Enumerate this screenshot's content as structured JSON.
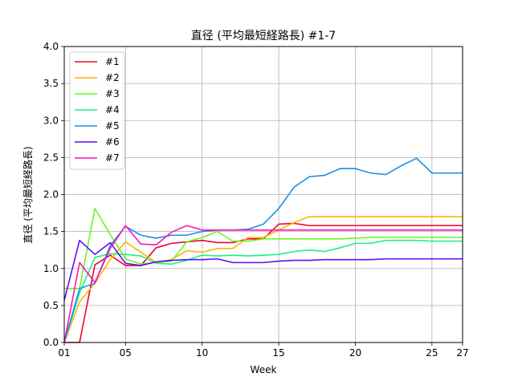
{
  "chart_data": {
    "type": "line",
    "title": "直径 (平均最短経路長)  #1-7",
    "xlabel": "Week",
    "ylabel": "直径 (平均最短経路長)",
    "xlim": [
      1,
      27
    ],
    "ylim": [
      0,
      4.0
    ],
    "x_ticks": [
      1,
      5,
      10,
      15,
      20,
      25,
      27
    ],
    "x_tick_labels": [
      "01",
      "05",
      "10",
      "15",
      "20",
      "25",
      "27"
    ],
    "y_ticks": [
      0,
      0.5,
      1.0,
      1.5,
      2.0,
      2.5,
      3.0,
      3.5,
      4.0
    ],
    "y_tick_labels": [
      "0.0",
      "0.5",
      "1.0",
      "1.5",
      "2.0",
      "2.5",
      "3.0",
      "3.5",
      "4.0"
    ],
    "grid": true,
    "legend_position": "top-left",
    "x": [
      1,
      2,
      3,
      4,
      5,
      6,
      7,
      8,
      9,
      10,
      11,
      12,
      13,
      14,
      15,
      16,
      17,
      18,
      19,
      20,
      21,
      22,
      23,
      24,
      25,
      26,
      27
    ],
    "series": [
      {
        "name": "#1",
        "color": "#f0002e",
        "values": [
          0.0,
          0.0,
          1.05,
          1.18,
          1.04,
          1.04,
          1.28,
          1.34,
          1.36,
          1.38,
          1.35,
          1.35,
          1.4,
          1.4,
          1.6,
          1.61,
          1.58,
          1.58,
          1.58,
          1.58,
          1.58,
          1.58,
          1.58,
          1.58,
          1.58,
          1.58,
          1.58
        ]
      },
      {
        "name": "#2",
        "color": "#ffb400",
        "values": [
          0.0,
          0.55,
          0.8,
          1.12,
          1.36,
          1.22,
          1.08,
          1.12,
          1.24,
          1.22,
          1.27,
          1.27,
          1.42,
          1.42,
          1.52,
          1.62,
          1.7,
          1.7,
          1.7,
          1.7,
          1.7,
          1.7,
          1.7,
          1.7,
          1.7,
          1.7,
          1.7
        ]
      },
      {
        "name": "#3",
        "color": "#6cf51e",
        "values": [
          0.73,
          0.73,
          1.81,
          1.46,
          1.13,
          1.06,
          1.08,
          1.1,
          1.36,
          1.42,
          1.5,
          1.37,
          1.37,
          1.4,
          1.4,
          1.4,
          1.4,
          1.4,
          1.4,
          1.41,
          1.42,
          1.42,
          1.42,
          1.42,
          1.42,
          1.42,
          1.42
        ]
      },
      {
        "name": "#4",
        "color": "#1cf089",
        "values": [
          0.0,
          0.67,
          1.15,
          1.2,
          1.19,
          1.17,
          1.07,
          1.06,
          1.11,
          1.18,
          1.17,
          1.18,
          1.17,
          1.18,
          1.19,
          1.23,
          1.25,
          1.23,
          1.28,
          1.34,
          1.34,
          1.38,
          1.38,
          1.38,
          1.37,
          1.37,
          1.37
        ]
      },
      {
        "name": "#5",
        "color": "#1790eb",
        "values": [
          0.0,
          0.73,
          0.8,
          1.31,
          1.57,
          1.45,
          1.41,
          1.45,
          1.45,
          1.5,
          1.52,
          1.52,
          1.53,
          1.6,
          1.81,
          2.1,
          2.24,
          2.26,
          2.35,
          2.35,
          2.29,
          2.27,
          2.39,
          2.49,
          2.29,
          2.29,
          2.29
        ]
      },
      {
        "name": "#6",
        "color": "#5c0ff0",
        "values": [
          0.57,
          1.38,
          1.19,
          1.35,
          1.07,
          1.04,
          1.09,
          1.11,
          1.12,
          1.12,
          1.13,
          1.08,
          1.08,
          1.08,
          1.1,
          1.11,
          1.11,
          1.12,
          1.12,
          1.12,
          1.12,
          1.13,
          1.13,
          1.13,
          1.13,
          1.13,
          1.13
        ]
      },
      {
        "name": "#7",
        "color": "#ff14b9",
        "values": [
          0.0,
          1.08,
          0.81,
          1.27,
          1.58,
          1.33,
          1.32,
          1.49,
          1.58,
          1.52,
          1.52,
          1.52,
          1.52,
          1.52,
          1.52,
          1.52,
          1.52,
          1.52,
          1.52,
          1.52,
          1.52,
          1.52,
          1.52,
          1.52,
          1.52,
          1.52,
          1.52
        ]
      }
    ]
  }
}
